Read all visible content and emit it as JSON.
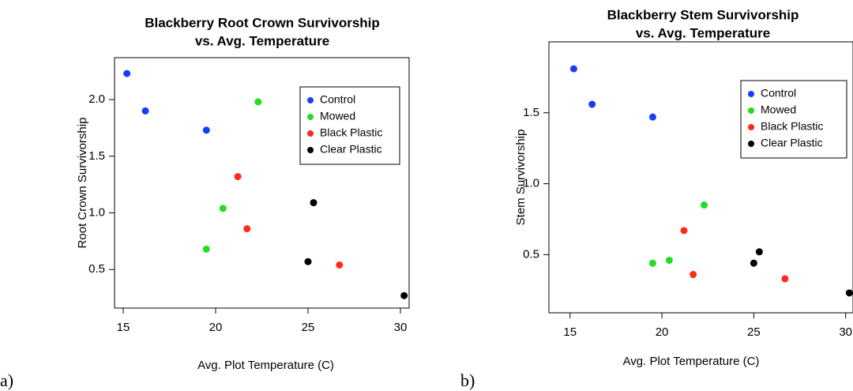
{
  "chart_data": [
    {
      "type": "scatter",
      "panel_label": "a)",
      "title": [
        "Blackberry Root Crown Survivorship",
        "vs. Avg. Temperature"
      ],
      "x_label": "Avg. Plot Temperature (C)",
      "y_label": "Root Crown Survivorship",
      "xlim": [
        14.53,
        30.47
      ],
      "ylim": [
        0.16,
        2.37
      ],
      "xticks": [
        15,
        20,
        25,
        30
      ],
      "yticks": [
        {
          "value": 0.5,
          "label": "0.5"
        },
        {
          "value": 1.0,
          "label": "1.0"
        },
        {
          "value": 1.5,
          "label": "1.5"
        },
        {
          "value": 2.0,
          "label": "2.0"
        }
      ],
      "legend": "topright",
      "series": [
        {
          "name": "Control",
          "color": "#1a3cff",
          "x": [
            15.2,
            16.2,
            19.5
          ],
          "values": [
            2.23,
            1.9,
            1.73
          ]
        },
        {
          "name": "Mowed",
          "color": "#22dd22",
          "x": [
            22.3,
            20.4,
            19.5
          ],
          "values": [
            1.98,
            1.04,
            0.68
          ]
        },
        {
          "name": "Black Plastic",
          "color": "#ff2a1a",
          "x": [
            21.2,
            21.7,
            26.7
          ],
          "values": [
            1.32,
            0.86,
            0.54
          ]
        },
        {
          "name": "Clear Plastic",
          "color": "#000000",
          "x": [
            25.3,
            25.0,
            30.2
          ],
          "values": [
            1.09,
            0.57,
            0.27
          ]
        }
      ]
    },
    {
      "type": "scatter",
      "panel_label": "b)",
      "title": [
        "Blackberry Stem Survivorship",
        "vs. Avg. Temperature"
      ],
      "x_label": "Avg. Plot Temperature (C)",
      "y_label": "Stem Survivorship",
      "xlim": [
        13.85,
        30.4
      ],
      "ylim": [
        0.09,
        2.0
      ],
      "xticks": [
        15,
        20,
        25,
        30
      ],
      "yticks": [
        {
          "value": 0.5,
          "label": "0.5"
        },
        {
          "value": 1.0,
          "label": "1.0"
        },
        {
          "value": 1.5,
          "label": "1.5"
        }
      ],
      "legend": "topright",
      "series": [
        {
          "name": "Control",
          "color": "#1a3cff",
          "x": [
            15.2,
            16.2,
            19.5
          ],
          "values": [
            1.81,
            1.56,
            1.47
          ]
        },
        {
          "name": "Mowed",
          "color": "#22dd22",
          "x": [
            22.3,
            20.4,
            19.5
          ],
          "values": [
            0.85,
            0.46,
            0.44
          ]
        },
        {
          "name": "Black Plastic",
          "color": "#ff2a1a",
          "x": [
            21.2,
            21.7,
            26.7
          ],
          "values": [
            0.67,
            0.36,
            0.33
          ]
        },
        {
          "name": "Clear Plastic",
          "color": "#000000",
          "x": [
            25.3,
            25.0,
            30.2
          ],
          "values": [
            0.52,
            0.44,
            0.23
          ]
        }
      ]
    }
  ]
}
